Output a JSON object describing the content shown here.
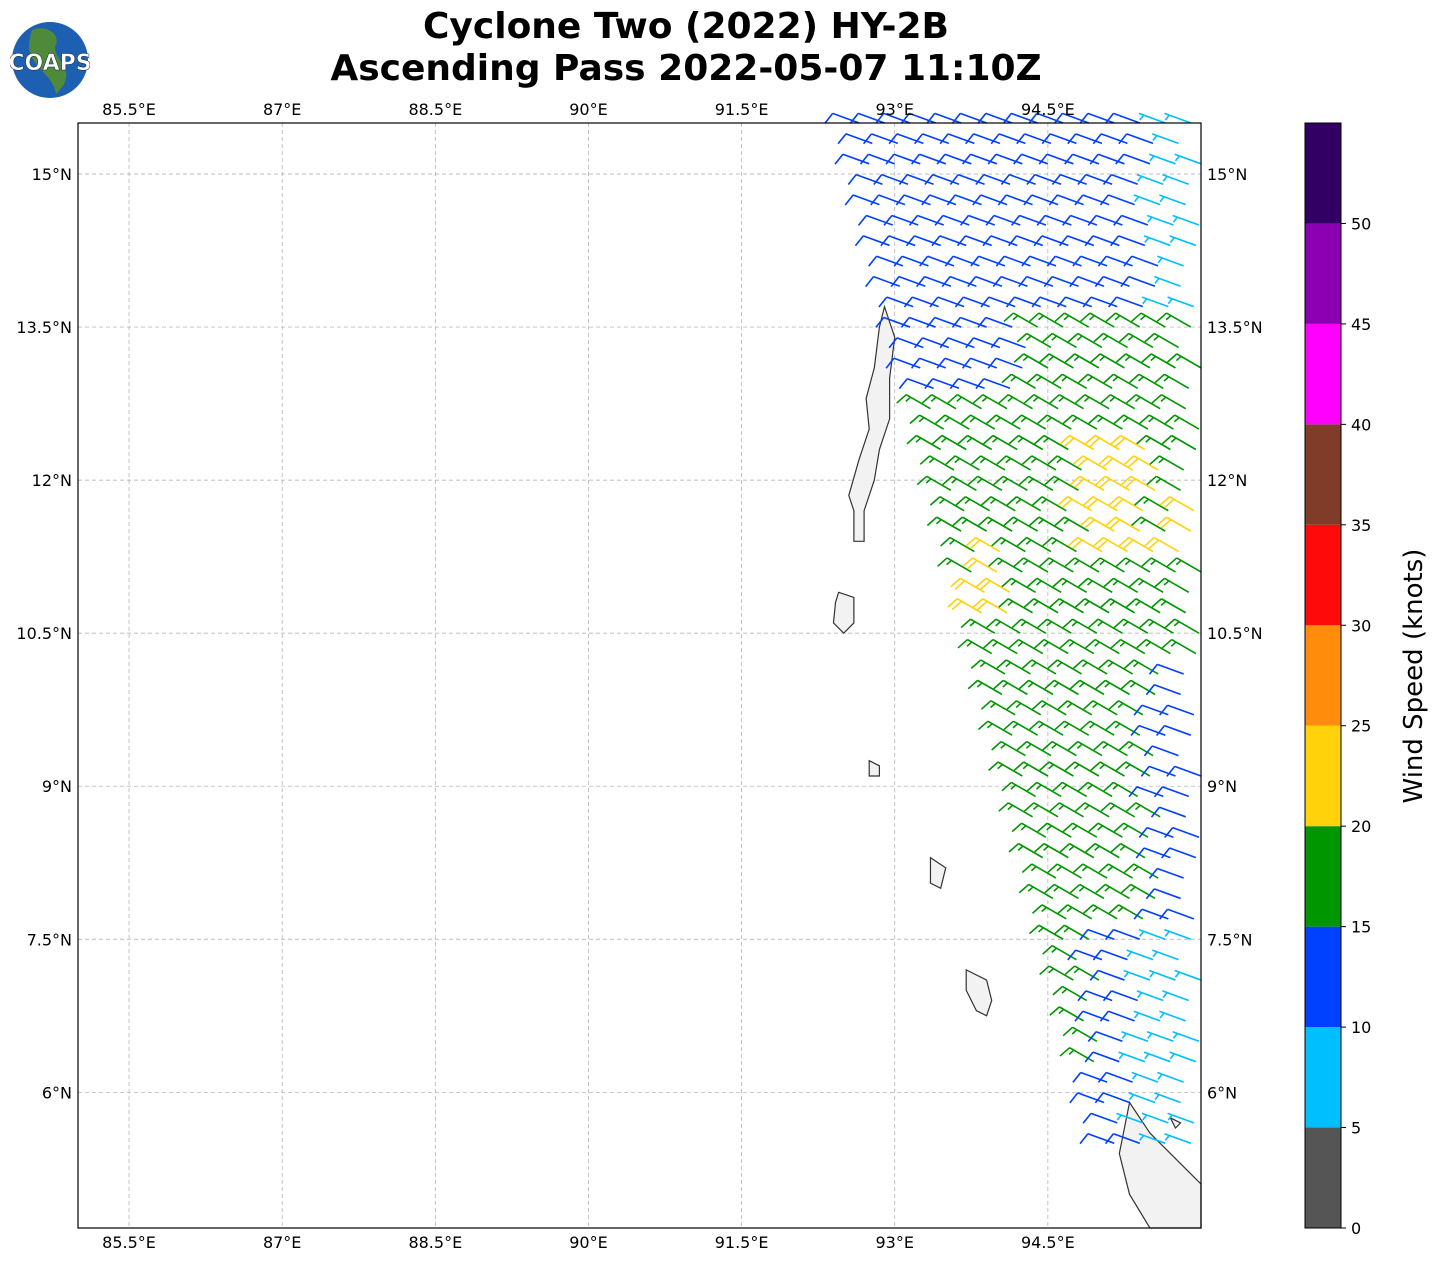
{
  "title": {
    "line1": "Cyclone Two (2022) HY-2B",
    "line2": "Ascending Pass 2022-05-07 11:10Z"
  },
  "logo": {
    "text": "COAPS"
  },
  "map": {
    "lon_range": [
      85.0,
      96.0
    ],
    "lat_range": [
      4.67,
      15.5
    ],
    "lon_ticks": [
      {
        "value": 85.5,
        "label": "85.5°E"
      },
      {
        "value": 87,
        "label": "87°E"
      },
      {
        "value": 88.5,
        "label": "88.5°E"
      },
      {
        "value": 90,
        "label": "90°E"
      },
      {
        "value": 91.5,
        "label": "91.5°E"
      },
      {
        "value": 93,
        "label": "93°E"
      },
      {
        "value": 94.5,
        "label": "94.5°E"
      }
    ],
    "lat_ticks": [
      {
        "value": 15,
        "label": "15°N"
      },
      {
        "value": 13.5,
        "label": "13.5°N"
      },
      {
        "value": 12,
        "label": "12°N"
      },
      {
        "value": 10.5,
        "label": "10.5°N"
      },
      {
        "value": 9,
        "label": "9°N"
      },
      {
        "value": 7.5,
        "label": "7.5°N"
      },
      {
        "value": 6,
        "label": "6°N"
      }
    ],
    "gridlines": true
  },
  "colorbar": {
    "label": "Wind Speed (knots)",
    "ticks": [
      "0",
      "5",
      "10",
      "15",
      "20",
      "25",
      "30",
      "35",
      "40",
      "45",
      "50"
    ],
    "bins": [
      {
        "min": 0,
        "max": 5,
        "color": "#555555"
      },
      {
        "min": 5,
        "max": 10,
        "color": "#00bfff"
      },
      {
        "min": 10,
        "max": 15,
        "color": "#0040ff"
      },
      {
        "min": 15,
        "max": 20,
        "color": "#009600"
      },
      {
        "min": 20,
        "max": 25,
        "color": "#ffd20a"
      },
      {
        "min": 25,
        "max": 30,
        "color": "#ff8c0a"
      },
      {
        "min": 30,
        "max": 35,
        "color": "#ff0a0a"
      },
      {
        "min": 35,
        "max": 40,
        "color": "#803c28"
      },
      {
        "min": 40,
        "max": 45,
        "color": "#ff00ff"
      },
      {
        "min": 45,
        "max": 50,
        "color": "#8c00b4"
      },
      {
        "min": 50,
        "max": 55,
        "color": "#320064"
      }
    ]
  }
}
